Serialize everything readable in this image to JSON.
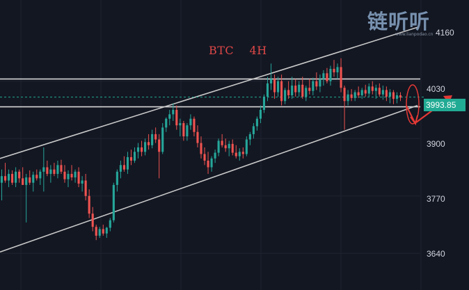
{
  "watermark": {
    "title": "链听听",
    "url": "www.lianpodao.cn"
  },
  "chart_data": {
    "type": "candlestick",
    "title": "BTC    4H",
    "y_ticks": [
      4030,
      3900,
      3770,
      3640
    ],
    "y_partial_tick": "4160",
    "ylim": [
      3620,
      4195
    ],
    "current_price": "3993.85",
    "current_price_value": 3993.85,
    "x_index_range": [
      0,
      120
    ],
    "horizontal_levels": [
      4035,
      3972
    ],
    "trend_channel": {
      "upper": {
        "start": [
          0,
          3855
        ],
        "end": [
          120,
          4152
        ]
      },
      "lower": {
        "start": [
          0,
          3643
        ],
        "end": [
          120,
          3975
        ]
      }
    },
    "candles": [
      {
        "o": 3800,
        "h": 3830,
        "l": 3760,
        "c": 3815
      },
      {
        "o": 3815,
        "h": 3845,
        "l": 3800,
        "c": 3805
      },
      {
        "o": 3805,
        "h": 3830,
        "l": 3790,
        "c": 3820
      },
      {
        "o": 3820,
        "h": 3828,
        "l": 3795,
        "c": 3800
      },
      {
        "o": 3800,
        "h": 3835,
        "l": 3790,
        "c": 3825
      },
      {
        "o": 3825,
        "h": 3830,
        "l": 3800,
        "c": 3810
      },
      {
        "o": 3810,
        "h": 3835,
        "l": 3795,
        "c": 3795
      },
      {
        "o": 3795,
        "h": 3820,
        "l": 3710,
        "c": 3812
      },
      {
        "o": 3812,
        "h": 3828,
        "l": 3795,
        "c": 3800
      },
      {
        "o": 3800,
        "h": 3825,
        "l": 3780,
        "c": 3818
      },
      {
        "o": 3818,
        "h": 3830,
        "l": 3805,
        "c": 3810
      },
      {
        "o": 3810,
        "h": 3830,
        "l": 3795,
        "c": 3825
      },
      {
        "o": 3825,
        "h": 3880,
        "l": 3780,
        "c": 3835
      },
      {
        "o": 3835,
        "h": 3850,
        "l": 3815,
        "c": 3820
      },
      {
        "o": 3820,
        "h": 3840,
        "l": 3800,
        "c": 3830
      },
      {
        "o": 3830,
        "h": 3845,
        "l": 3815,
        "c": 3820
      },
      {
        "o": 3820,
        "h": 3850,
        "l": 3810,
        "c": 3840
      },
      {
        "o": 3840,
        "h": 3852,
        "l": 3820,
        "c": 3825
      },
      {
        "o": 3825,
        "h": 3840,
        "l": 3800,
        "c": 3808
      },
      {
        "o": 3808,
        "h": 3828,
        "l": 3790,
        "c": 3820
      },
      {
        "o": 3820,
        "h": 3840,
        "l": 3805,
        "c": 3812
      },
      {
        "o": 3812,
        "h": 3830,
        "l": 3800,
        "c": 3825
      },
      {
        "o": 3825,
        "h": 3835,
        "l": 3790,
        "c": 3798
      },
      {
        "o": 3798,
        "h": 3815,
        "l": 3780,
        "c": 3805
      },
      {
        "o": 3805,
        "h": 3820,
        "l": 3760,
        "c": 3770
      },
      {
        "o": 3770,
        "h": 3785,
        "l": 3720,
        "c": 3730
      },
      {
        "o": 3730,
        "h": 3745,
        "l": 3690,
        "c": 3700
      },
      {
        "o": 3700,
        "h": 3705,
        "l": 3670,
        "c": 3680
      },
      {
        "o": 3680,
        "h": 3700,
        "l": 3675,
        "c": 3695
      },
      {
        "o": 3695,
        "h": 3705,
        "l": 3680,
        "c": 3685
      },
      {
        "o": 3685,
        "h": 3700,
        "l": 3675,
        "c": 3698
      },
      {
        "o": 3698,
        "h": 3720,
        "l": 3690,
        "c": 3715
      },
      {
        "o": 3715,
        "h": 3800,
        "l": 3710,
        "c": 3795
      },
      {
        "o": 3795,
        "h": 3830,
        "l": 3780,
        "c": 3825
      },
      {
        "o": 3825,
        "h": 3850,
        "l": 3810,
        "c": 3840
      },
      {
        "o": 3840,
        "h": 3860,
        "l": 3825,
        "c": 3830
      },
      {
        "o": 3830,
        "h": 3870,
        "l": 3820,
        "c": 3858
      },
      {
        "o": 3858,
        "h": 3875,
        "l": 3840,
        "c": 3850
      },
      {
        "o": 3850,
        "h": 3880,
        "l": 3845,
        "c": 3870
      },
      {
        "o": 3870,
        "h": 3890,
        "l": 3855,
        "c": 3880
      },
      {
        "o": 3880,
        "h": 3895,
        "l": 3860,
        "c": 3870
      },
      {
        "o": 3870,
        "h": 3900,
        "l": 3862,
        "c": 3892
      },
      {
        "o": 3892,
        "h": 3910,
        "l": 3875,
        "c": 3885
      },
      {
        "o": 3885,
        "h": 3920,
        "l": 3878,
        "c": 3910
      },
      {
        "o": 3910,
        "h": 3925,
        "l": 3890,
        "c": 3898
      },
      {
        "o": 3898,
        "h": 3910,
        "l": 3810,
        "c": 3870
      },
      {
        "o": 3870,
        "h": 3935,
        "l": 3865,
        "c": 3925
      },
      {
        "o": 3925,
        "h": 3948,
        "l": 3915,
        "c": 3945
      },
      {
        "o": 3945,
        "h": 3965,
        "l": 3930,
        "c": 3955
      },
      {
        "o": 3955,
        "h": 3980,
        "l": 3940,
        "c": 3965
      },
      {
        "o": 3965,
        "h": 3975,
        "l": 3920,
        "c": 3930
      },
      {
        "o": 3930,
        "h": 3945,
        "l": 3905,
        "c": 3935
      },
      {
        "o": 3935,
        "h": 3940,
        "l": 3895,
        "c": 3905
      },
      {
        "o": 3905,
        "h": 3935,
        "l": 3895,
        "c": 3930
      },
      {
        "o": 3930,
        "h": 3955,
        "l": 3920,
        "c": 3945
      },
      {
        "o": 3945,
        "h": 3950,
        "l": 3905,
        "c": 3915
      },
      {
        "o": 3915,
        "h": 3930,
        "l": 3880,
        "c": 3890
      },
      {
        "o": 3890,
        "h": 3905,
        "l": 3855,
        "c": 3865
      },
      {
        "o": 3865,
        "h": 3880,
        "l": 3840,
        "c": 3850
      },
      {
        "o": 3850,
        "h": 3870,
        "l": 3820,
        "c": 3835
      },
      {
        "o": 3835,
        "h": 3860,
        "l": 3825,
        "c": 3855
      },
      {
        "o": 3855,
        "h": 3875,
        "l": 3845,
        "c": 3868
      },
      {
        "o": 3868,
        "h": 3900,
        "l": 3860,
        "c": 3895
      },
      {
        "o": 3895,
        "h": 3910,
        "l": 3880,
        "c": 3885
      },
      {
        "o": 3885,
        "h": 3900,
        "l": 3870,
        "c": 3878
      },
      {
        "o": 3878,
        "h": 3895,
        "l": 3860,
        "c": 3888
      },
      {
        "o": 3888,
        "h": 3898,
        "l": 3862,
        "c": 3868
      },
      {
        "o": 3868,
        "h": 3885,
        "l": 3855,
        "c": 3860
      },
      {
        "o": 3860,
        "h": 3878,
        "l": 3850,
        "c": 3870
      },
      {
        "o": 3870,
        "h": 3880,
        "l": 3855,
        "c": 3865
      },
      {
        "o": 3865,
        "h": 3905,
        "l": 3860,
        "c": 3898
      },
      {
        "o": 3898,
        "h": 3915,
        "l": 3885,
        "c": 3910
      },
      {
        "o": 3910,
        "h": 3935,
        "l": 3900,
        "c": 3928
      },
      {
        "o": 3928,
        "h": 3950,
        "l": 3918,
        "c": 3945
      },
      {
        "o": 3945,
        "h": 3975,
        "l": 3935,
        "c": 3965
      },
      {
        "o": 3965,
        "h": 4000,
        "l": 3958,
        "c": 3995
      },
      {
        "o": 3995,
        "h": 4040,
        "l": 3985,
        "c": 4025
      },
      {
        "o": 4025,
        "h": 4070,
        "l": 4010,
        "c": 4035
      },
      {
        "o": 4035,
        "h": 4045,
        "l": 3990,
        "c": 4005
      },
      {
        "o": 4005,
        "h": 4040,
        "l": 3995,
        "c": 4030
      },
      {
        "o": 4030,
        "h": 4045,
        "l": 3975,
        "c": 3985
      },
      {
        "o": 3985,
        "h": 4015,
        "l": 3978,
        "c": 4010
      },
      {
        "o": 4010,
        "h": 4030,
        "l": 3990,
        "c": 3998
      },
      {
        "o": 3998,
        "h": 4040,
        "l": 3990,
        "c": 4020
      },
      {
        "o": 4020,
        "h": 4035,
        "l": 3995,
        "c": 4005
      },
      {
        "o": 4005,
        "h": 4030,
        "l": 3995,
        "c": 4022
      },
      {
        "o": 4022,
        "h": 4040,
        "l": 3990,
        "c": 3995
      },
      {
        "o": 3995,
        "h": 4020,
        "l": 3985,
        "c": 4015
      },
      {
        "o": 4015,
        "h": 4035,
        "l": 4000,
        "c": 4008
      },
      {
        "o": 4008,
        "h": 4038,
        "l": 3998,
        "c": 4030
      },
      {
        "o": 4030,
        "h": 4050,
        "l": 4010,
        "c": 4018
      },
      {
        "o": 4018,
        "h": 4045,
        "l": 4005,
        "c": 4035
      },
      {
        "o": 4035,
        "h": 4055,
        "l": 4020,
        "c": 4048
      },
      {
        "o": 4048,
        "h": 4060,
        "l": 4025,
        "c": 4030
      },
      {
        "o": 4030,
        "h": 4065,
        "l": 4020,
        "c": 4058
      },
      {
        "o": 4058,
        "h": 4078,
        "l": 4040,
        "c": 4050
      },
      {
        "o": 4050,
        "h": 4070,
        "l": 4035,
        "c": 4062
      },
      {
        "o": 4062,
        "h": 4082,
        "l": 4005,
        "c": 4015
      },
      {
        "o": 4015,
        "h": 4020,
        "l": 3920,
        "c": 3985
      },
      {
        "o": 3985,
        "h": 4010,
        "l": 3975,
        "c": 4000
      },
      {
        "o": 4000,
        "h": 4012,
        "l": 3985,
        "c": 3992
      },
      {
        "o": 3992,
        "h": 4010,
        "l": 3985,
        "c": 4005
      },
      {
        "o": 4005,
        "h": 4018,
        "l": 3992,
        "c": 3998
      },
      {
        "o": 3998,
        "h": 4015,
        "l": 3990,
        "c": 4010
      },
      {
        "o": 4010,
        "h": 4022,
        "l": 3995,
        "c": 4002
      },
      {
        "o": 4002,
        "h": 4025,
        "l": 3995,
        "c": 4018
      },
      {
        "o": 4018,
        "h": 4030,
        "l": 4000,
        "c": 4008
      },
      {
        "o": 4008,
        "h": 4022,
        "l": 3990,
        "c": 4015
      },
      {
        "o": 4015,
        "h": 4025,
        "l": 3995,
        "c": 4000
      },
      {
        "o": 4000,
        "h": 4020,
        "l": 3988,
        "c": 4010
      },
      {
        "o": 4010,
        "h": 4018,
        "l": 3985,
        "c": 3995
      },
      {
        "o": 3995,
        "h": 4012,
        "l": 3980,
        "c": 4005
      },
      {
        "o": 4005,
        "h": 4010,
        "l": 3978,
        "c": 3990
      },
      {
        "o": 3990,
        "h": 4005,
        "l": 3980,
        "c": 3998
      },
      {
        "o": 3998,
        "h": 4005,
        "l": 3985,
        "c": 3993
      }
    ]
  }
}
